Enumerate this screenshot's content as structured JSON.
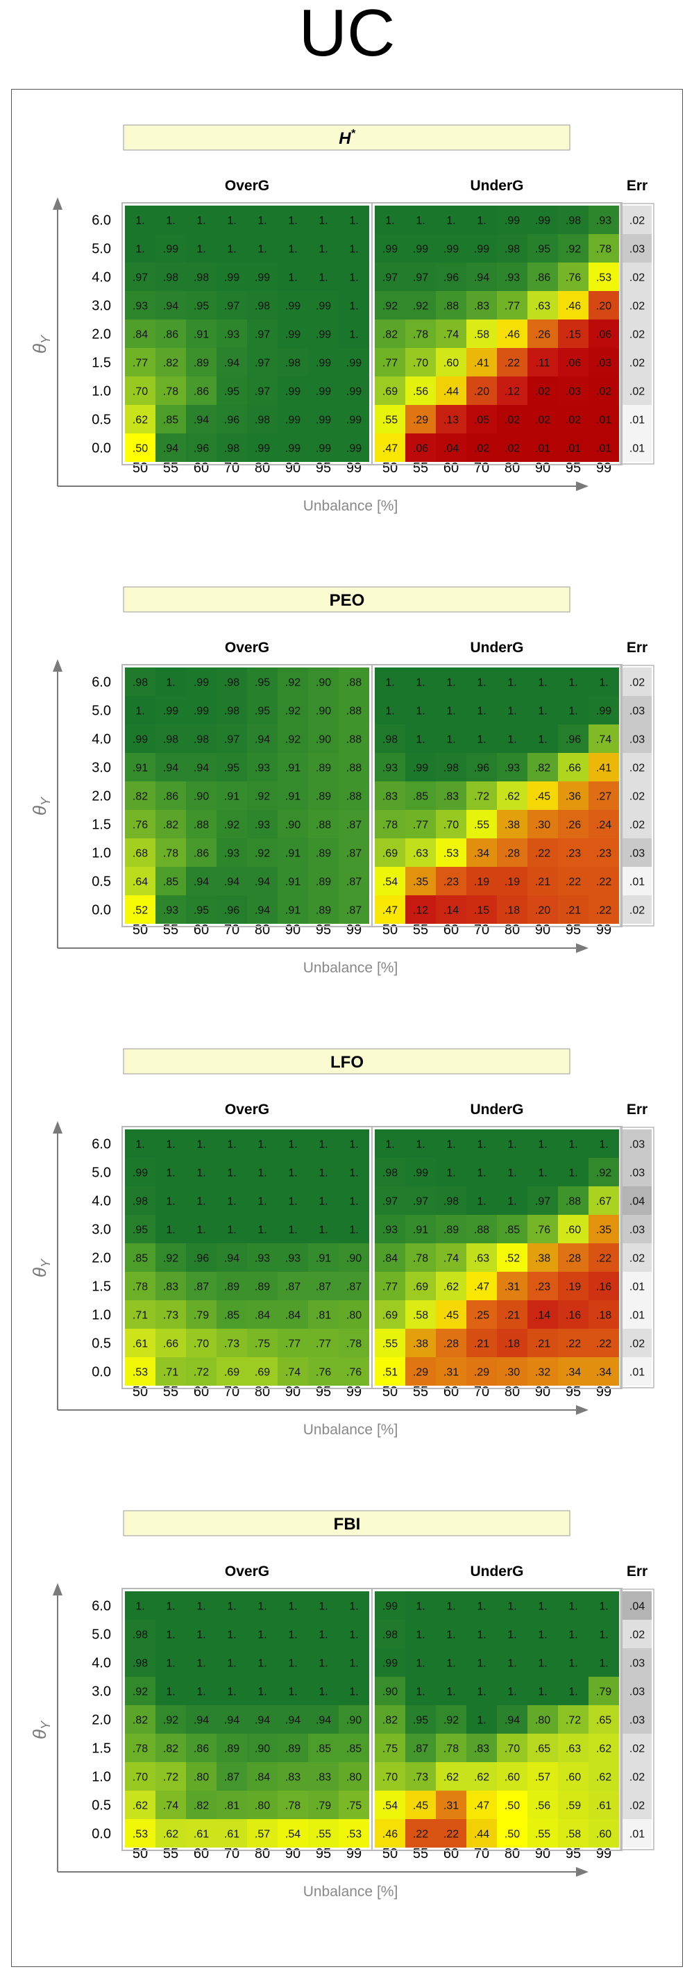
{
  "page": {
    "title": "UC"
  },
  "common": {
    "overg_label": "OverG",
    "underg_label": "UnderG",
    "err_label": "Err",
    "xlabel": "Unbalance [%]",
    "ylabel_main": "θ",
    "ylabel_sub": "Y",
    "x_ticks": [
      "50",
      "55",
      "60",
      "70",
      "80",
      "90",
      "95",
      "99"
    ],
    "y_ticks": [
      "6.0",
      "5.0",
      "4.0",
      "3.0",
      "2.0",
      "1.5",
      "1.0",
      "0.5",
      "0.0"
    ]
  },
  "colors": {
    "dark_green": "#1b7a2b",
    "green": "#4f9b2c",
    "yellow_green": "#c4dd20",
    "yellow": "#ffff00",
    "orange": "#e08a10",
    "red": "#c01010",
    "title_box": "#fbfbd2"
  },
  "chart_data": [
    {
      "type": "heatmap",
      "title": "H*",
      "title_main": "H",
      "title_sup": "*",
      "overg": [
        [
          "1.",
          "1.",
          "1.",
          "1.",
          "1.",
          "1.",
          "1.",
          "1."
        ],
        [
          "1.",
          ".99",
          "1.",
          "1.",
          "1.",
          "1.",
          "1.",
          "1."
        ],
        [
          ".97",
          ".98",
          ".98",
          ".99",
          ".99",
          "1.",
          "1.",
          "1."
        ],
        [
          ".93",
          ".94",
          ".95",
          ".97",
          ".98",
          ".99",
          ".99",
          "1."
        ],
        [
          ".84",
          ".86",
          ".91",
          ".93",
          ".97",
          ".99",
          ".99",
          "1."
        ],
        [
          ".77",
          ".82",
          ".89",
          ".94",
          ".97",
          ".98",
          ".99",
          ".99"
        ],
        [
          ".70",
          ".78",
          ".86",
          ".95",
          ".97",
          ".99",
          ".99",
          ".99"
        ],
        [
          ".62",
          ".85",
          ".94",
          ".96",
          ".98",
          ".99",
          ".99",
          ".99"
        ],
        [
          ".50",
          ".94",
          ".96",
          ".98",
          ".99",
          ".99",
          ".99",
          ".99"
        ]
      ],
      "underg": [
        [
          "1.",
          "1.",
          "1.",
          "1.",
          ".99",
          ".99",
          ".98",
          ".93"
        ],
        [
          ".99",
          ".99",
          ".99",
          ".99",
          ".98",
          ".95",
          ".92",
          ".78"
        ],
        [
          ".97",
          ".97",
          ".96",
          ".94",
          ".93",
          ".86",
          ".76",
          ".53"
        ],
        [
          ".92",
          ".92",
          ".88",
          ".83",
          ".77",
          ".63",
          ".46",
          ".20"
        ],
        [
          ".82",
          ".78",
          ".74",
          ".58",
          ".46",
          ".26",
          ".15",
          ".06"
        ],
        [
          ".77",
          ".70",
          ".60",
          ".41",
          ".22",
          ".11",
          ".06",
          ".03"
        ],
        [
          ".69",
          ".56",
          ".44",
          ".20",
          ".12",
          ".02",
          ".03",
          ".02"
        ],
        [
          ".55",
          ".29",
          ".13",
          ".05",
          ".02",
          ".02",
          ".02",
          ".01"
        ],
        [
          ".47",
          ".06",
          ".04",
          ".02",
          ".02",
          ".01",
          ".01",
          ".01"
        ]
      ],
      "err": [
        ".02",
        ".03",
        ".02",
        ".02",
        ".02",
        ".02",
        ".02",
        ".01",
        ".01"
      ]
    },
    {
      "type": "heatmap",
      "title": "PEO",
      "title_main": "PEO",
      "title_sup": "",
      "overg": [
        [
          ".98",
          "1.",
          ".99",
          ".98",
          ".95",
          ".92",
          ".90",
          ".88"
        ],
        [
          "1.",
          ".99",
          ".99",
          ".98",
          ".95",
          ".92",
          ".90",
          ".88"
        ],
        [
          ".99",
          ".98",
          ".98",
          ".97",
          ".94",
          ".92",
          ".90",
          ".88"
        ],
        [
          ".91",
          ".94",
          ".94",
          ".95",
          ".93",
          ".91",
          ".89",
          ".88"
        ],
        [
          ".82",
          ".86",
          ".90",
          ".91",
          ".92",
          ".91",
          ".89",
          ".88"
        ],
        [
          ".76",
          ".82",
          ".88",
          ".92",
          ".93",
          ".90",
          ".88",
          ".87"
        ],
        [
          ".68",
          ".78",
          ".86",
          ".93",
          ".92",
          ".91",
          ".89",
          ".87"
        ],
        [
          ".64",
          ".85",
          ".94",
          ".94",
          ".94",
          ".91",
          ".89",
          ".87"
        ],
        [
          ".52",
          ".93",
          ".95",
          ".96",
          ".94",
          ".91",
          ".89",
          ".87"
        ]
      ],
      "underg": [
        [
          "1.",
          "1.",
          "1.",
          "1.",
          "1.",
          "1.",
          "1.",
          "1."
        ],
        [
          "1.",
          "1.",
          "1.",
          "1.",
          "1.",
          "1.",
          "1.",
          ".99"
        ],
        [
          ".98",
          "1.",
          "1.",
          "1.",
          "1.",
          "1.",
          ".96",
          ".74"
        ],
        [
          ".93",
          ".99",
          ".98",
          ".96",
          ".93",
          ".82",
          ".66",
          ".41"
        ],
        [
          ".83",
          ".85",
          ".83",
          ".72",
          ".62",
          ".45",
          ".36",
          ".27"
        ],
        [
          ".78",
          ".77",
          ".70",
          ".55",
          ".38",
          ".30",
          ".26",
          ".24"
        ],
        [
          ".69",
          ".63",
          ".53",
          ".34",
          ".28",
          ".22",
          ".23",
          ".23"
        ],
        [
          ".54",
          ".35",
          ".23",
          ".19",
          ".19",
          ".21",
          ".22",
          ".22"
        ],
        [
          ".47",
          ".12",
          ".14",
          ".15",
          ".18",
          ".20",
          ".21",
          ".22"
        ]
      ],
      "err": [
        ".02",
        ".03",
        ".03",
        ".02",
        ".02",
        ".02",
        ".03",
        ".01",
        ".02"
      ]
    },
    {
      "type": "heatmap",
      "title": "LFO",
      "title_main": "LFO",
      "title_sup": "",
      "overg": [
        [
          "1.",
          "1.",
          "1.",
          "1.",
          "1.",
          "1.",
          "1.",
          "1."
        ],
        [
          ".99",
          "1.",
          "1.",
          "1.",
          "1.",
          "1.",
          "1.",
          "1."
        ],
        [
          ".98",
          "1.",
          "1.",
          "1.",
          "1.",
          "1.",
          "1.",
          "1."
        ],
        [
          ".95",
          "1.",
          "1.",
          "1.",
          "1.",
          "1.",
          "1.",
          "1."
        ],
        [
          ".85",
          ".92",
          ".96",
          ".94",
          ".93",
          ".93",
          ".91",
          ".90"
        ],
        [
          ".78",
          ".83",
          ".87",
          ".89",
          ".89",
          ".87",
          ".87",
          ".87"
        ],
        [
          ".71",
          ".73",
          ".79",
          ".85",
          ".84",
          ".84",
          ".81",
          ".80"
        ],
        [
          ".61",
          ".66",
          ".70",
          ".73",
          ".75",
          ".77",
          ".77",
          ".78"
        ],
        [
          ".53",
          ".71",
          ".72",
          ".69",
          ".69",
          ".74",
          ".76",
          ".76"
        ]
      ],
      "underg": [
        [
          "1.",
          "1.",
          "1.",
          "1.",
          "1.",
          "1.",
          "1.",
          "1."
        ],
        [
          ".98",
          ".99",
          "1.",
          "1.",
          "1.",
          "1.",
          "1.",
          ".92"
        ],
        [
          ".97",
          ".97",
          ".98",
          "1.",
          "1.",
          ".97",
          ".88",
          ".67"
        ],
        [
          ".93",
          ".91",
          ".89",
          ".88",
          ".85",
          ".76",
          ".60",
          ".35"
        ],
        [
          ".84",
          ".78",
          ".74",
          ".63",
          ".52",
          ".38",
          ".28",
          ".22"
        ],
        [
          ".77",
          ".69",
          ".62",
          ".47",
          ".31",
          ".23",
          ".19",
          ".16"
        ],
        [
          ".69",
          ".58",
          ".45",
          ".25",
          ".21",
          ".14",
          ".16",
          ".18"
        ],
        [
          ".55",
          ".38",
          ".28",
          ".21",
          ".18",
          ".21",
          ".22",
          ".22"
        ],
        [
          ".51",
          ".29",
          ".31",
          ".29",
          ".30",
          ".32",
          ".34",
          ".34"
        ]
      ],
      "err": [
        ".03",
        ".03",
        ".04",
        ".03",
        ".02",
        ".01",
        ".01",
        ".02",
        ".01"
      ]
    },
    {
      "type": "heatmap",
      "title": "FBI",
      "title_main": "FBI",
      "title_sup": "",
      "overg": [
        [
          "1.",
          "1.",
          "1.",
          "1.",
          "1.",
          "1.",
          "1.",
          "1."
        ],
        [
          ".98",
          "1.",
          "1.",
          "1.",
          "1.",
          "1.",
          "1.",
          "1."
        ],
        [
          ".98",
          "1.",
          "1.",
          "1.",
          "1.",
          "1.",
          "1.",
          "1."
        ],
        [
          ".92",
          "1.",
          "1.",
          "1.",
          "1.",
          "1.",
          "1.",
          "1."
        ],
        [
          ".82",
          ".92",
          ".94",
          ".94",
          ".94",
          ".94",
          ".94",
          ".90"
        ],
        [
          ".78",
          ".82",
          ".86",
          ".89",
          ".90",
          ".89",
          ".85",
          ".85"
        ],
        [
          ".70",
          ".72",
          ".80",
          ".87",
          ".84",
          ".83",
          ".83",
          ".80"
        ],
        [
          ".62",
          ".74",
          ".82",
          ".81",
          ".80",
          ".78",
          ".79",
          ".75"
        ],
        [
          ".53",
          ".62",
          ".61",
          ".61",
          ".57",
          ".54",
          ".55",
          ".53"
        ]
      ],
      "underg": [
        [
          ".99",
          "1.",
          "1.",
          "1.",
          "1.",
          "1.",
          "1.",
          "1."
        ],
        [
          ".98",
          "1.",
          "1.",
          "1.",
          "1.",
          "1.",
          "1.",
          "1."
        ],
        [
          ".99",
          "1.",
          "1.",
          "1.",
          "1.",
          "1.",
          "1.",
          "1."
        ],
        [
          ".90",
          "1.",
          "1.",
          "1.",
          "1.",
          "1.",
          "1.",
          ".79"
        ],
        [
          ".82",
          ".95",
          ".92",
          "1.",
          ".94",
          ".80",
          ".72",
          ".65"
        ],
        [
          ".75",
          ".87",
          ".78",
          ".83",
          ".70",
          ".65",
          ".63",
          ".62"
        ],
        [
          ".70",
          ".73",
          ".62",
          ".62",
          ".60",
          ".57",
          ".60",
          ".62"
        ],
        [
          ".54",
          ".45",
          ".31",
          ".47",
          ".50",
          ".56",
          ".59",
          ".61"
        ],
        [
          ".46",
          ".22",
          ".22",
          ".44",
          ".50",
          ".55",
          ".58",
          ".60"
        ]
      ],
      "err": [
        ".04",
        ".02",
        ".03",
        ".03",
        ".03",
        ".02",
        ".02",
        ".02",
        ".01"
      ]
    }
  ]
}
